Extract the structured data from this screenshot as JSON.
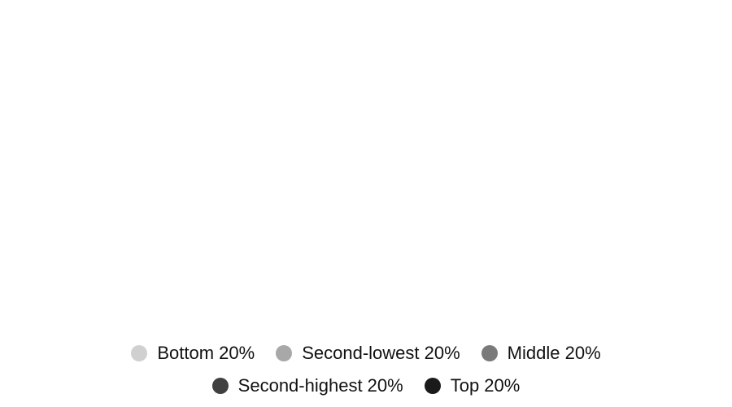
{
  "chart_data": {
    "type": "bar",
    "categories": [],
    "series": [
      {
        "name": "Bottom 20%",
        "color": "#d0d0d0",
        "values": []
      },
      {
        "name": "Second-lowest 20%",
        "color": "#a8a8a8",
        "values": []
      },
      {
        "name": "Middle 20%",
        "color": "#7a7a7a",
        "values": []
      },
      {
        "name": "Second-highest 20%",
        "color": "#404040",
        "values": []
      },
      {
        "name": "Top 20%",
        "color": "#1a1a1a",
        "values": []
      }
    ],
    "legend_position": "bottom",
    "grid": false
  }
}
